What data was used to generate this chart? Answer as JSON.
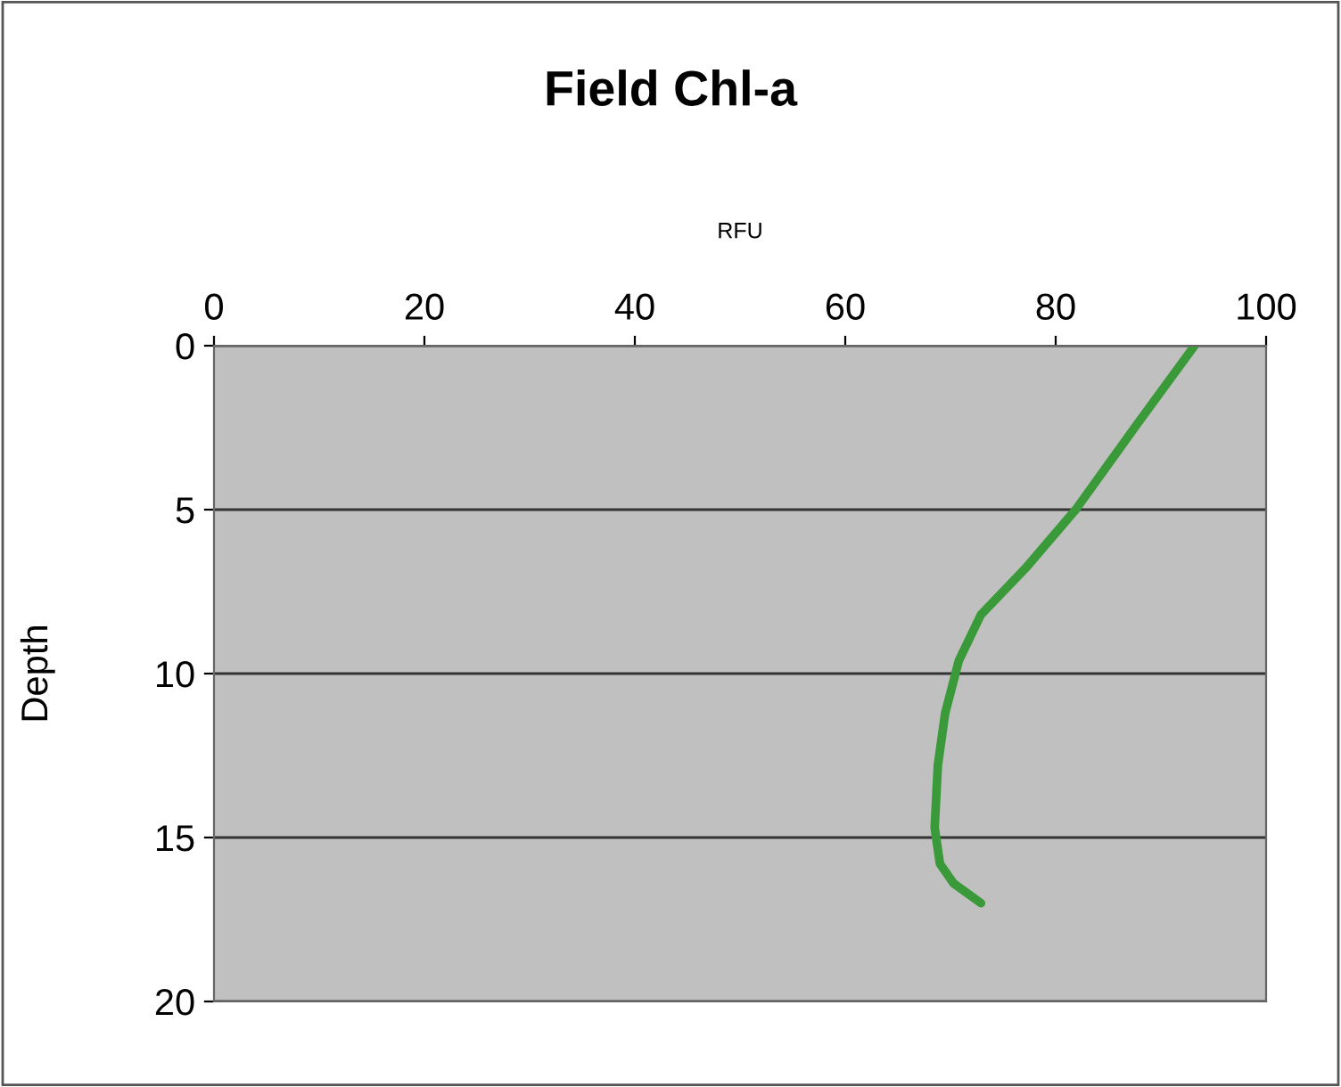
{
  "chart_data": {
    "type": "line",
    "title": "Field Chl-a",
    "xlabel": "RFU",
    "ylabel": "Depth",
    "xlim": [
      0,
      100
    ],
    "xticks": [
      0,
      20,
      40,
      60,
      80,
      100
    ],
    "ylim": [
      20,
      0
    ],
    "yticks": [
      0,
      5,
      10,
      15,
      20
    ],
    "grid": "y",
    "marker": "none",
    "line_style": "solid",
    "series": [
      {
        "color": "#3a9a3a",
        "x": [
          93.2,
          87.5,
          81.9,
          77.1,
          72.9,
          70.8,
          69.5,
          68.8,
          68.5,
          69.0,
          70.3,
          72.9
        ],
        "values": [
          0,
          2.5,
          5,
          6.8,
          8.2,
          9.6,
          11.2,
          12.8,
          14.7,
          15.8,
          16.4,
          17.0
        ]
      }
    ]
  }
}
